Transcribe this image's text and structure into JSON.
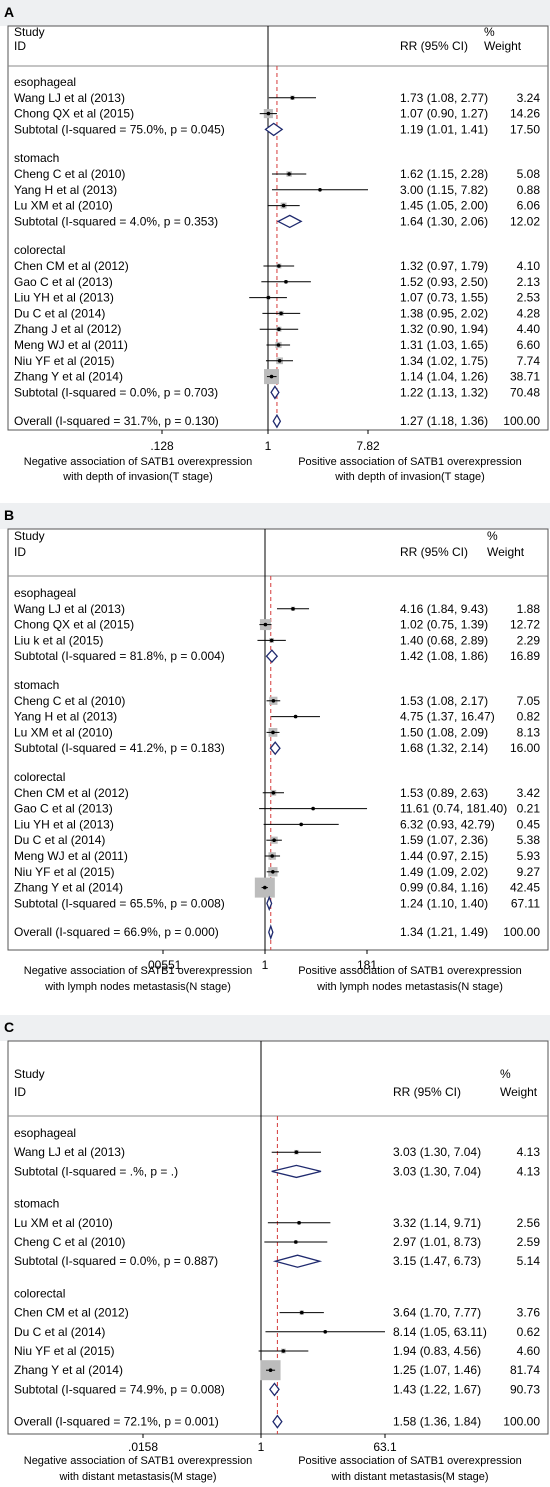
{
  "chart_data": [
    {
      "type": "forest",
      "panel": "A",
      "headers": {
        "study": "Study",
        "id": "ID",
        "rr": "RR (95% CI)",
        "pct": "%",
        "weight": "Weight"
      },
      "scale": "log",
      "axis_ticks": [
        {
          "value": 0.128,
          "label": ".128"
        },
        {
          "value": 1,
          "label": "1"
        },
        {
          "value": 7.82,
          "label": "7.82"
        }
      ],
      "overall_value": 1.27,
      "footer_left": [
        "Negative association of SATB1 overexpression",
        "with depth of invasion(T stage)"
      ],
      "footer_right": [
        "Positive association of SATB1 overexpression",
        "with depth of invasion(T stage)"
      ],
      "groups": [
        {
          "name": "esophageal",
          "studies": [
            {
              "label": "Wang LJ et al (2013)",
              "rr": 1.73,
              "lo": 1.08,
              "hi": 2.77,
              "weight": 3.24,
              "text": "1.73 (1.08, 2.77)",
              "wtext": "3.24"
            },
            {
              "label": "Chong QX et al  (2015)",
              "rr": 1.07,
              "lo": 0.9,
              "hi": 1.27,
              "weight": 14.26,
              "text": "1.07 (0.90, 1.27)",
              "wtext": "14.26"
            }
          ],
          "subtotal": {
            "label": "Subtotal  (I-squared = 75.0%, p = 0.045)",
            "rr": 1.19,
            "lo": 1.01,
            "hi": 1.41,
            "text": "1.19 (1.01, 1.41)",
            "wtext": "17.50"
          }
        },
        {
          "name": "stomach",
          "studies": [
            {
              "label": "Cheng C et al (2010)",
              "rr": 1.62,
              "lo": 1.15,
              "hi": 2.28,
              "weight": 5.08,
              "text": "1.62 (1.15, 2.28)",
              "wtext": "5.08"
            },
            {
              "label": "Yang H et al (2013)",
              "rr": 3.0,
              "lo": 1.15,
              "hi": 7.82,
              "weight": 0.88,
              "text": "3.00 (1.15, 7.82)",
              "wtext": "0.88"
            },
            {
              "label": "Lu XM et al (2010)",
              "rr": 1.45,
              "lo": 1.05,
              "hi": 2.0,
              "weight": 6.06,
              "text": "1.45 (1.05, 2.00)",
              "wtext": "6.06"
            }
          ],
          "subtotal": {
            "label": "Subtotal  (I-squared = 4.0%, p = 0.353)",
            "rr": 1.64,
            "lo": 1.3,
            "hi": 2.06,
            "text": "1.64 (1.30, 2.06)",
            "wtext": "12.02"
          }
        },
        {
          "name": "colorectal",
          "studies": [
            {
              "label": "Chen CM et al (2012)",
              "rr": 1.32,
              "lo": 0.97,
              "hi": 1.79,
              "weight": 4.1,
              "text": "1.32 (0.97, 1.79)",
              "wtext": "4.10"
            },
            {
              "label": "Gao C et al (2013)",
              "rr": 1.52,
              "lo": 0.93,
              "hi": 2.5,
              "weight": 2.13,
              "text": "1.52 (0.93, 2.50)",
              "wtext": "2.13"
            },
            {
              "label": "Liu YH et al (2013)",
              "rr": 1.07,
              "lo": 0.73,
              "hi": 1.55,
              "weight": 2.53,
              "text": "1.07 (0.73, 1.55)",
              "wtext": "2.53"
            },
            {
              "label": "Du C et al (2014)",
              "rr": 1.38,
              "lo": 0.95,
              "hi": 2.02,
              "weight": 4.28,
              "text": "1.38 (0.95, 2.02)",
              "wtext": "4.28"
            },
            {
              "label": "Zhang J et al (2012)",
              "rr": 1.32,
              "lo": 0.9,
              "hi": 1.94,
              "weight": 4.4,
              "text": "1.32 (0.90, 1.94)",
              "wtext": "4.40"
            },
            {
              "label": "Meng WJ et al (2011)",
              "rr": 1.31,
              "lo": 1.03,
              "hi": 1.65,
              "weight": 6.6,
              "text": "1.31 (1.03, 1.65)",
              "wtext": "6.60"
            },
            {
              "label": "Niu YF et al  (2015)",
              "rr": 1.34,
              "lo": 1.02,
              "hi": 1.75,
              "weight": 7.74,
              "text": "1.34 (1.02, 1.75)",
              "wtext": "7.74"
            },
            {
              "label": "Zhang Y et al (2014)",
              "rr": 1.14,
              "lo": 1.04,
              "hi": 1.26,
              "weight": 38.71,
              "text": "1.14 (1.04, 1.26)",
              "wtext": "38.71"
            }
          ],
          "subtotal": {
            "label": "Subtotal  (I-squared = 0.0%, p = 0.703)",
            "rr": 1.22,
            "lo": 1.13,
            "hi": 1.32,
            "text": "1.22 (1.13, 1.32)",
            "wtext": "70.48"
          }
        }
      ],
      "overall": {
        "label": "Overall  (I-squared = 31.7%, p = 0.130)",
        "rr": 1.27,
        "lo": 1.18,
        "hi": 1.36,
        "text": "1.27 (1.18, 1.36)",
        "wtext": "100.00"
      }
    },
    {
      "type": "forest",
      "panel": "B",
      "headers": {
        "study": "Study",
        "id": "ID",
        "rr": "RR (95% CI)",
        "pct": "%",
        "weight": "Weight"
      },
      "scale": "log",
      "axis_ticks": [
        {
          "value": 0.00551,
          "label": ".00551"
        },
        {
          "value": 1,
          "label": "1"
        },
        {
          "value": 181,
          "label": "181"
        }
      ],
      "overall_value": 1.34,
      "footer_left": [
        "Negative association of SATB1 overexpression",
        "with  lymph nodes metastasis(N stage)"
      ],
      "footer_right": [
        "Positive association of SATB1 overexpression",
        "with  lymph nodes metastasis(N stage)"
      ],
      "groups": [
        {
          "name": "esophageal",
          "studies": [
            {
              "label": "Wang LJ et al (2013)",
              "rr": 4.16,
              "lo": 1.84,
              "hi": 9.43,
              "weight": 1.88,
              "text": "4.16 (1.84, 9.43)",
              "wtext": "1.88"
            },
            {
              "label": "Chong QX et al  (2015)",
              "rr": 1.02,
              "lo": 0.75,
              "hi": 1.39,
              "weight": 12.72,
              "text": "1.02 (0.75, 1.39)",
              "wtext": "12.72"
            },
            {
              "label": "Liu k et al (2015)",
              "rr": 1.4,
              "lo": 0.68,
              "hi": 2.89,
              "weight": 2.29,
              "text": "1.40 (0.68, 2.89)",
              "wtext": "2.29"
            }
          ],
          "subtotal": {
            "label": "Subtotal  (I-squared = 81.8%, p = 0.004)",
            "rr": 1.42,
            "lo": 1.08,
            "hi": 1.86,
            "text": "1.42 (1.08, 1.86)",
            "wtext": "16.89"
          }
        },
        {
          "name": "stomach",
          "studies": [
            {
              "label": "Cheng C et al (2010)",
              "rr": 1.53,
              "lo": 1.08,
              "hi": 2.17,
              "weight": 7.05,
              "text": "1.53 (1.08, 2.17)",
              "wtext": "7.05"
            },
            {
              "label": "Yang H et al (2013)",
              "rr": 4.75,
              "lo": 1.37,
              "hi": 16.47,
              "weight": 0.82,
              "text": "4.75 (1.37, 16.47)",
              "wtext": "0.82"
            },
            {
              "label": "Lu XM et al (2010)",
              "rr": 1.5,
              "lo": 1.08,
              "hi": 2.09,
              "weight": 8.13,
              "text": "1.50 (1.08, 2.09)",
              "wtext": "8.13"
            }
          ],
          "subtotal": {
            "label": "Subtotal  (I-squared = 41.2%, p = 0.183)",
            "rr": 1.68,
            "lo": 1.32,
            "hi": 2.14,
            "text": "1.68 (1.32, 2.14)",
            "wtext": "16.00"
          }
        },
        {
          "name": "colorectal",
          "studies": [
            {
              "label": "Chen CM et al (2012)",
              "rr": 1.53,
              "lo": 0.89,
              "hi": 2.63,
              "weight": 3.42,
              "text": "1.53 (0.89, 2.63)",
              "wtext": "3.42"
            },
            {
              "label": "Gao C et al (2013)",
              "rr": 11.61,
              "lo": 0.74,
              "hi": 181.4,
              "weight": 0.21,
              "text": "11.61 (0.74, 181.40)",
              "wtext": "0.21"
            },
            {
              "label": "Liu YH et al (2013)",
              "rr": 6.32,
              "lo": 0.93,
              "hi": 42.79,
              "weight": 0.45,
              "text": "6.32 (0.93, 42.79)",
              "wtext": "0.45"
            },
            {
              "label": "Du C et al (2014)",
              "rr": 1.59,
              "lo": 1.07,
              "hi": 2.36,
              "weight": 5.38,
              "text": "1.59 (1.07, 2.36)",
              "wtext": "5.38"
            },
            {
              "label": "Meng WJ et al (2011)",
              "rr": 1.44,
              "lo": 0.97,
              "hi": 2.15,
              "weight": 5.93,
              "text": "1.44 (0.97, 2.15)",
              "wtext": "5.93"
            },
            {
              "label": "Niu YF et al  (2015)",
              "rr": 1.49,
              "lo": 1.09,
              "hi": 2.02,
              "weight": 9.27,
              "text": "1.49 (1.09, 2.02)",
              "wtext": "9.27"
            },
            {
              "label": "Zhang Y et al (2014)",
              "rr": 0.99,
              "lo": 0.84,
              "hi": 1.16,
              "weight": 42.45,
              "text": "0.99 (0.84, 1.16)",
              "wtext": "42.45"
            }
          ],
          "subtotal": {
            "label": "Subtotal  (I-squared = 65.5%, p = 0.008)",
            "rr": 1.24,
            "lo": 1.1,
            "hi": 1.4,
            "text": "1.24 (1.10, 1.40)",
            "wtext": "67.11"
          }
        }
      ],
      "overall": {
        "label": "Overall  (I-squared = 66.9%, p = 0.000)",
        "rr": 1.34,
        "lo": 1.21,
        "hi": 1.49,
        "text": "1.34 (1.21, 1.49)",
        "wtext": "100.00"
      }
    },
    {
      "type": "forest",
      "panel": "C",
      "headers": {
        "study": "Study",
        "id": "ID",
        "rr": "RR (95% CI)",
        "pct": "%",
        "weight": "Weight"
      },
      "scale": "log",
      "axis_ticks": [
        {
          "value": 0.0158,
          "label": ".0158"
        },
        {
          "value": 1,
          "label": "1"
        },
        {
          "value": 63.1,
          "label": "63.1"
        }
      ],
      "overall_value": 1.58,
      "footer_left": [
        "Negative association of SATB1 overexpression",
        "with  distant metastasis(M stage)"
      ],
      "footer_right": [
        "Positive association of SATB1 overexpression",
        "with distant metastasis(M stage)"
      ],
      "groups": [
        {
          "name": "esophageal",
          "studies": [
            {
              "label": "Wang LJ et al (2013)",
              "rr": 3.03,
              "lo": 1.3,
              "hi": 7.04,
              "weight": 4.13,
              "text": "3.03 (1.30, 7.04)",
              "wtext": "4.13"
            }
          ],
          "subtotal": {
            "label": "Subtotal  (I-squared = .%, p = .)",
            "rr": 3.03,
            "lo": 1.3,
            "hi": 7.04,
            "text": "3.03 (1.30, 7.04)",
            "wtext": "4.13"
          }
        },
        {
          "name": "stomach",
          "studies": [
            {
              "label": "Lu XM et al (2010)",
              "rr": 3.32,
              "lo": 1.14,
              "hi": 9.71,
              "weight": 2.56,
              "text": "3.32 (1.14, 9.71)",
              "wtext": "2.56"
            },
            {
              "label": "Cheng C et al (2010)",
              "rr": 2.97,
              "lo": 1.01,
              "hi": 8.73,
              "weight": 2.59,
              "text": "2.97 (1.01, 8.73)",
              "wtext": "2.59"
            }
          ],
          "subtotal": {
            "label": "Subtotal  (I-squared = 0.0%, p = 0.887)",
            "rr": 3.15,
            "lo": 1.47,
            "hi": 6.73,
            "text": "3.15 (1.47, 6.73)",
            "wtext": "5.14"
          }
        },
        {
          "name": "colorectal",
          "studies": [
            {
              "label": "Chen CM et al (2012)",
              "rr": 3.64,
              "lo": 1.7,
              "hi": 7.77,
              "weight": 3.76,
              "text": "3.64 (1.70, 7.77)",
              "wtext": "3.76"
            },
            {
              "label": "Du C et al (2014)",
              "rr": 8.14,
              "lo": 1.05,
              "hi": 63.11,
              "weight": 0.62,
              "text": "8.14 (1.05, 63.11)",
              "wtext": "0.62"
            },
            {
              "label": "Niu YF et al  (2015)",
              "rr": 1.94,
              "lo": 0.83,
              "hi": 4.56,
              "weight": 4.6,
              "text": "1.94 (0.83, 4.56)",
              "wtext": "4.60"
            },
            {
              "label": "Zhang Y et al (2014)",
              "rr": 1.25,
              "lo": 1.07,
              "hi": 1.46,
              "weight": 81.74,
              "text": "1.25 (1.07, 1.46)",
              "wtext": "81.74"
            }
          ],
          "subtotal": {
            "label": "Subtotal  (I-squared = 74.9%, p = 0.008)",
            "rr": 1.43,
            "lo": 1.22,
            "hi": 1.67,
            "text": "1.43 (1.22, 1.67)",
            "wtext": "90.73"
          }
        }
      ],
      "overall": {
        "label": "Overall  (I-squared = 72.1%, p = 0.001)",
        "rr": 1.58,
        "lo": 1.36,
        "hi": 1.84,
        "text": "1.58 (1.36, 1.84)",
        "wtext": "100.00"
      }
    }
  ],
  "colors": {
    "box_fill": "#bcbcbc",
    "diamond_stroke": "#1f2a6e",
    "overall_line": "#d43a3a",
    "frame": "#555555",
    "header_band": "#eef0f2"
  }
}
